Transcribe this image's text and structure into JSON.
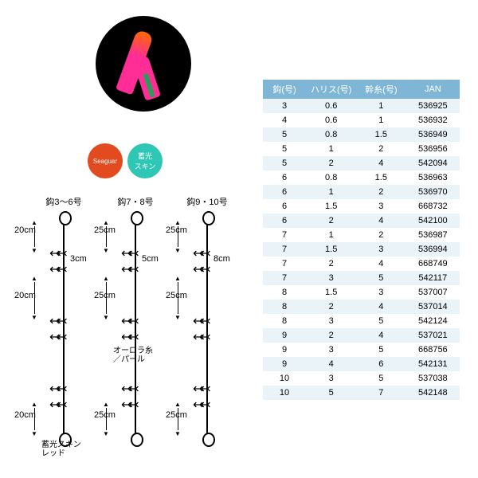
{
  "product": {
    "badge1": "Seaguar",
    "badge2": "蓄光\nスキン"
  },
  "diagram": {
    "cols": [
      {
        "title": "鈎3～6号",
        "seg": "20cm",
        "branch": "3cm"
      },
      {
        "title": "鈎7・8号",
        "seg": "25cm",
        "branch": "5cm"
      },
      {
        "title": "鈎9・10号",
        "seg": "25cm",
        "branch": "8cm"
      }
    ],
    "note1": "オーロラ糸\n／パール",
    "note2": "蓄光スキン\nレッド"
  },
  "table": {
    "headers": [
      "鈎(号)",
      "ハリス(号)",
      "幹糸(号)",
      "JAN"
    ],
    "rows": [
      [
        "3",
        "0.6",
        "1",
        "536925"
      ],
      [
        "4",
        "0.6",
        "1",
        "536932"
      ],
      [
        "5",
        "0.8",
        "1.5",
        "536949"
      ],
      [
        "5",
        "1",
        "2",
        "536956"
      ],
      [
        "5",
        "2",
        "4",
        "542094"
      ],
      [
        "6",
        "0.8",
        "1.5",
        "536963"
      ],
      [
        "6",
        "1",
        "2",
        "536970"
      ],
      [
        "6",
        "1.5",
        "3",
        "668732"
      ],
      [
        "6",
        "2",
        "4",
        "542100"
      ],
      [
        "7",
        "1",
        "2",
        "536987"
      ],
      [
        "7",
        "1.5",
        "3",
        "536994"
      ],
      [
        "7",
        "2",
        "4",
        "668749"
      ],
      [
        "7",
        "3",
        "5",
        "542117"
      ],
      [
        "8",
        "1.5",
        "3",
        "537007"
      ],
      [
        "8",
        "2",
        "4",
        "537014"
      ],
      [
        "8",
        "3",
        "5",
        "542124"
      ],
      [
        "9",
        "2",
        "4",
        "537021"
      ],
      [
        "9",
        "3",
        "5",
        "668756"
      ],
      [
        "9",
        "4",
        "6",
        "542131"
      ],
      [
        "10",
        "3",
        "5",
        "537038"
      ],
      [
        "10",
        "5",
        "7",
        "542148"
      ]
    ],
    "header_bg": "#7fb6d6",
    "row_odd_bg": "#e9f3f8",
    "row_even_bg": "#ffffff"
  }
}
